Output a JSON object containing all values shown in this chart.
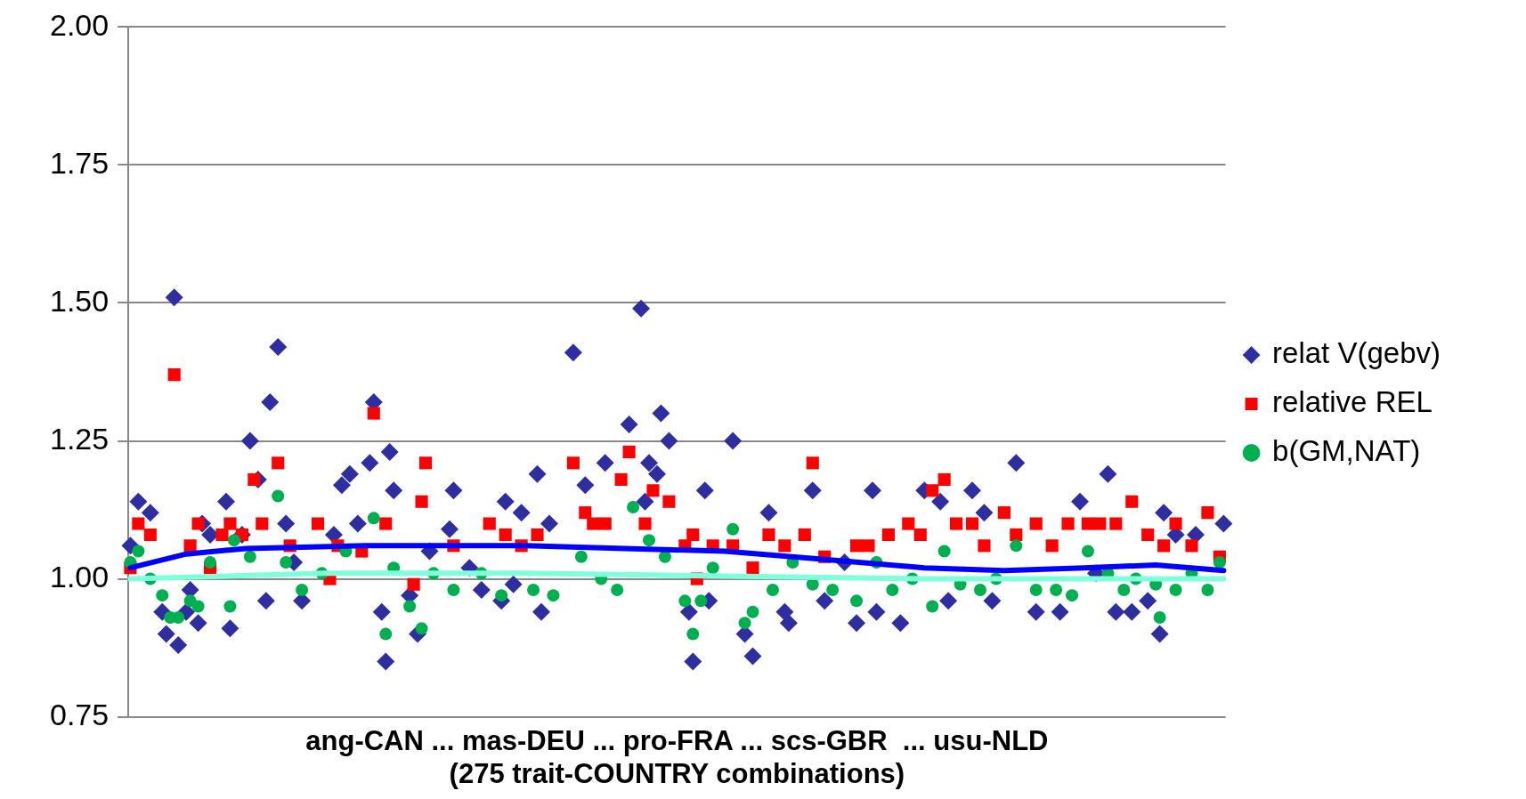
{
  "chart_data": {
    "type": "scatter",
    "xlabel": "ang-CAN ... mas-DEU ... pro-FRA ... scs-GBR  ... usu-NLD\n(275 trait-COUNTRY combinations)",
    "ylim": [
      0.75,
      2.0
    ],
    "yticks": [
      {
        "value": 0.75,
        "label": "0.75"
      },
      {
        "value": 1.0,
        "label": "1.00"
      },
      {
        "value": 1.25,
        "label": "1.25"
      },
      {
        "value": 1.5,
        "label": "1.50"
      },
      {
        "value": 1.75,
        "label": "1.75"
      },
      {
        "value": 2.0,
        "label": "2.00"
      }
    ],
    "grid": "y",
    "legend": "right",
    "tick_labels": "y",
    "categories": [
      null,
      null,
      null,
      null,
      null,
      null,
      null,
      null,
      null,
      null,
      null,
      null,
      null,
      null,
      null,
      null,
      null,
      null,
      null,
      null,
      null,
      null,
      null,
      null,
      null,
      null,
      null,
      null,
      null,
      null,
      null,
      null,
      null,
      null,
      null,
      null,
      null,
      null,
      null,
      null,
      null,
      null,
      null,
      null,
      null,
      null,
      null,
      null,
      null,
      null,
      null,
      null,
      null,
      null,
      null,
      null,
      null,
      null,
      null,
      null,
      null,
      null,
      null,
      null,
      null,
      null,
      null,
      null,
      null,
      null,
      null,
      null,
      null,
      null,
      null,
      null,
      null,
      null,
      null,
      null,
      null,
      null,
      null,
      null,
      null,
      null,
      null,
      null,
      null,
      null,
      null,
      null,
      null,
      null,
      null,
      null,
      null,
      null,
      null,
      null,
      null,
      null,
      null,
      null,
      null,
      null,
      null,
      null,
      null,
      null,
      null,
      null,
      null,
      null,
      null,
      null,
      null,
      null,
      null,
      null,
      null,
      null,
      null,
      null,
      null,
      null,
      null,
      null,
      null,
      null,
      null,
      null,
      null,
      null,
      null,
      null,
      null,
      null,
      null,
      null,
      null,
      null,
      null,
      null,
      null,
      null,
      null,
      null,
      null,
      null,
      null,
      null,
      null,
      null,
      null,
      null,
      null,
      null,
      null,
      null,
      null,
      null,
      null,
      null,
      null,
      null,
      null,
      null,
      null,
      null,
      null,
      null,
      null,
      null,
      null,
      null,
      null,
      null,
      null,
      null,
      null,
      null,
      null,
      null,
      null,
      null,
      null,
      null,
      null,
      null,
      null,
      null,
      null,
      null,
      null,
      null,
      null,
      null,
      null,
      null,
      null,
      null,
      null,
      null,
      null,
      null,
      null,
      null,
      null,
      null,
      null,
      null,
      null,
      null,
      null,
      null,
      null,
      null,
      null,
      null,
      null,
      null,
      null,
      null,
      null,
      null,
      null,
      null,
      null,
      null,
      null,
      null,
      null,
      null,
      null,
      null,
      null,
      null,
      null,
      null,
      null,
      null,
      null,
      null,
      null,
      null,
      null,
      null,
      null,
      null,
      null,
      null,
      null,
      null,
      null,
      null,
      null,
      null,
      null,
      null,
      null,
      null,
      null,
      null,
      null,
      null,
      null,
      null,
      null,
      null,
      null,
      null,
      null,
      null,
      null
    ],
    "series": [
      {
        "name": "relat V(gebv)",
        "color": "#2e2ea0",
        "marker": "diamond",
        "values": [
          1.06,
          null,
          1.14,
          null,
          null,
          1.12,
          null,
          null,
          0.94,
          0.9,
          null,
          1.51,
          0.88,
          null,
          0.94,
          0.98,
          null,
          0.92,
          1.1,
          null,
          1.08,
          null,
          null,
          null,
          1.14,
          0.91,
          null,
          null,
          1.08,
          null,
          1.25,
          null,
          1.18,
          null,
          0.96,
          1.32,
          null,
          1.42,
          null,
          1.1,
          null,
          1.03,
          null,
          0.96,
          null,
          null,
          null,
          null,
          null,
          null,
          null,
          1.08,
          null,
          1.17,
          null,
          1.19,
          null,
          1.1,
          null,
          null,
          1.21,
          1.32,
          null,
          0.94,
          0.85,
          1.23,
          1.16,
          null,
          null,
          null,
          0.97,
          null,
          0.9,
          null,
          null,
          1.05,
          null,
          null,
          null,
          null,
          1.09,
          1.16,
          null,
          null,
          null,
          1.02,
          null,
          null,
          0.98,
          null,
          null,
          null,
          null,
          0.96,
          1.14,
          null,
          0.99,
          null,
          1.12,
          null,
          null,
          null,
          1.19,
          0.94,
          null,
          1.1,
          null,
          null,
          null,
          null,
          null,
          1.41,
          null,
          null,
          1.17,
          null,
          null,
          null,
          null,
          1.21,
          null,
          null,
          null,
          null,
          null,
          1.28,
          null,
          null,
          1.49,
          1.14,
          1.21,
          null,
          1.19,
          1.3,
          null,
          1.25,
          null,
          null,
          null,
          null,
          0.94,
          0.85,
          null,
          null,
          1.16,
          0.96,
          null,
          null,
          null,
          null,
          null,
          1.25,
          null,
          null,
          0.9,
          null,
          0.86,
          null,
          null,
          null,
          1.12,
          null,
          null,
          null,
          0.94,
          0.92,
          null,
          null,
          null,
          null,
          null,
          1.16,
          null,
          null,
          0.96,
          null,
          null,
          null,
          null,
          1.03,
          null,
          null,
          0.92,
          null,
          null,
          null,
          1.16,
          0.94,
          null,
          null,
          null,
          null,
          null,
          0.92,
          null,
          null,
          null,
          null,
          null,
          1.16,
          null,
          null,
          null,
          1.14,
          null,
          0.96,
          null,
          null,
          null,
          null,
          null,
          1.16,
          null,
          null,
          1.12,
          null,
          0.96,
          null,
          null,
          null,
          null,
          null,
          1.21,
          null,
          null,
          null,
          null,
          0.94,
          null,
          null,
          null,
          null,
          null,
          0.94,
          null,
          null,
          null,
          null,
          1.14,
          null,
          null,
          null,
          1.01,
          null,
          null,
          1.19,
          null,
          0.94,
          null,
          null,
          null,
          0.94,
          null,
          null,
          null,
          0.96,
          null,
          null,
          0.9,
          1.12,
          null,
          null,
          1.08,
          null,
          null,
          null,
          null,
          1.08,
          null,
          null,
          null,
          null,
          null,
          null,
          1.1
        ]
      },
      {
        "name": "relative REL",
        "color": "#ff0000",
        "marker": "square",
        "values": [
          1.02,
          null,
          1.1,
          null,
          null,
          1.08,
          null,
          null,
          null,
          null,
          null,
          1.37,
          null,
          null,
          null,
          1.06,
          null,
          1.1,
          null,
          null,
          1.02,
          null,
          null,
          1.08,
          null,
          1.1,
          null,
          null,
          1.08,
          null,
          null,
          1.18,
          null,
          1.1,
          null,
          null,
          null,
          1.21,
          null,
          null,
          1.06,
          null,
          null,
          null,
          null,
          null,
          null,
          1.1,
          null,
          null,
          1.0,
          null,
          1.06,
          null,
          null,
          null,
          null,
          null,
          1.05,
          null,
          null,
          1.3,
          null,
          null,
          1.1,
          null,
          null,
          null,
          null,
          null,
          null,
          0.99,
          null,
          1.14,
          1.21,
          null,
          null,
          null,
          null,
          null,
          null,
          1.06,
          null,
          null,
          null,
          null,
          null,
          null,
          null,
          null,
          1.1,
          null,
          null,
          null,
          1.08,
          null,
          null,
          null,
          1.06,
          null,
          null,
          null,
          1.08,
          null,
          null,
          null,
          null,
          null,
          null,
          null,
          null,
          1.21,
          null,
          null,
          1.12,
          null,
          1.1,
          null,
          null,
          1.1,
          null,
          null,
          null,
          1.18,
          null,
          1.23,
          null,
          null,
          null,
          1.1,
          null,
          1.16,
          null,
          null,
          null,
          1.14,
          null,
          null,
          null,
          1.06,
          null,
          1.08,
          1.0,
          null,
          null,
          null,
          1.06,
          null,
          null,
          null,
          null,
          1.06,
          null,
          null,
          null,
          null,
          1.02,
          null,
          null,
          null,
          1.08,
          null,
          null,
          null,
          1.06,
          null,
          null,
          null,
          null,
          1.08,
          null,
          1.21,
          null,
          null,
          1.04,
          null,
          null,
          null,
          null,
          null,
          null,
          null,
          1.06,
          null,
          null,
          1.06,
          null,
          null,
          null,
          null,
          1.08,
          null,
          null,
          null,
          null,
          1.1,
          null,
          null,
          1.08,
          null,
          null,
          1.16,
          null,
          null,
          1.18,
          null,
          null,
          1.1,
          null,
          null,
          null,
          1.1,
          null,
          null,
          1.06,
          null,
          null,
          null,
          null,
          1.12,
          null,
          null,
          1.08,
          null,
          null,
          null,
          null,
          1.1,
          null,
          null,
          null,
          1.06,
          null,
          null,
          null,
          1.1,
          null,
          null,
          null,
          null,
          1.1,
          null,
          null,
          1.1,
          null,
          null,
          null,
          1.1,
          null,
          null,
          null,
          1.14,
          null,
          null,
          null,
          1.08,
          null,
          null,
          null,
          1.06,
          null,
          null,
          1.1,
          null,
          null,
          null,
          1.06,
          null,
          null,
          null,
          1.12,
          null,
          null,
          1.04,
          null
        ]
      },
      {
        "name": "b(GM,NAT)",
        "color": "#00b050",
        "marker": "circle",
        "values": [
          1.03,
          null,
          1.05,
          null,
          null,
          1.0,
          null,
          null,
          0.97,
          null,
          0.93,
          null,
          0.93,
          null,
          null,
          0.96,
          null,
          0.95,
          null,
          null,
          1.03,
          null,
          null,
          null,
          null,
          0.95,
          1.07,
          null,
          null,
          null,
          1.04,
          null,
          null,
          null,
          null,
          null,
          null,
          1.15,
          null,
          1.03,
          null,
          null,
          null,
          0.98,
          null,
          null,
          null,
          null,
          1.01,
          null,
          null,
          null,
          null,
          null,
          1.05,
          null,
          null,
          null,
          null,
          null,
          null,
          1.11,
          null,
          null,
          0.9,
          null,
          1.02,
          null,
          null,
          null,
          0.95,
          null,
          null,
          0.91,
          null,
          null,
          1.01,
          null,
          null,
          null,
          null,
          0.98,
          null,
          null,
          null,
          null,
          null,
          null,
          1.01,
          null,
          null,
          null,
          null,
          0.97,
          null,
          null,
          null,
          null,
          null,
          null,
          null,
          0.98,
          null,
          null,
          null,
          null,
          0.97,
          null,
          null,
          null,
          null,
          null,
          null,
          1.04,
          null,
          null,
          null,
          null,
          1.0,
          null,
          null,
          null,
          0.98,
          null,
          null,
          null,
          1.13,
          null,
          null,
          null,
          1.07,
          null,
          null,
          null,
          1.04,
          null,
          null,
          null,
          null,
          0.96,
          null,
          0.9,
          null,
          0.96,
          null,
          null,
          1.02,
          null,
          null,
          null,
          null,
          1.09,
          null,
          null,
          0.92,
          null,
          0.94,
          null,
          null,
          null,
          null,
          0.98,
          null,
          null,
          null,
          null,
          1.03,
          null,
          null,
          null,
          null,
          0.99,
          null,
          null,
          null,
          null,
          0.98,
          null,
          null,
          null,
          null,
          null,
          0.96,
          null,
          null,
          null,
          null,
          1.03,
          null,
          null,
          null,
          0.98,
          null,
          null,
          null,
          null,
          1.0,
          null,
          null,
          null,
          null,
          0.95,
          null,
          null,
          1.05,
          null,
          null,
          null,
          0.99,
          null,
          null,
          null,
          null,
          0.98,
          null,
          null,
          null,
          1.0,
          null,
          null,
          null,
          null,
          1.06,
          null,
          null,
          null,
          null,
          0.98,
          null,
          null,
          null,
          null,
          0.98,
          null,
          null,
          null,
          0.97,
          null,
          null,
          null,
          1.05,
          null,
          null,
          null,
          null,
          1.01,
          null,
          null,
          null,
          0.98,
          null,
          null,
          1.0,
          null,
          null,
          null,
          null,
          0.99,
          0.93,
          null,
          null,
          null,
          0.98,
          null,
          null,
          null,
          1.01,
          null,
          null,
          null,
          0.98,
          null,
          null,
          1.03,
          null
        ]
      },
      {
        "type": "line",
        "color": "#0000ff",
        "marker": "none",
        "values": [
          1.02,
          null,
          null,
          null,
          null,
          null,
          null,
          null,
          null,
          null,
          null,
          null,
          null,
          null,
          1.045,
          null,
          null,
          null,
          null,
          null,
          null,
          null,
          null,
          null,
          null,
          null,
          null,
          null,
          null,
          1.055,
          null,
          null,
          null,
          null,
          null,
          null,
          null,
          null,
          null,
          null,
          null,
          null,
          null,
          null,
          null,
          null,
          null,
          null,
          null,
          null,
          null,
          null,
          null,
          null,
          null,
          null,
          null,
          null,
          null,
          1.06,
          null,
          null,
          null,
          null,
          null,
          null,
          null,
          null,
          null,
          null,
          null,
          null,
          null,
          null,
          null,
          null,
          null,
          null,
          null,
          null,
          null,
          null,
          null,
          null,
          null,
          null,
          null,
          null,
          null,
          null,
          null,
          null,
          null,
          null,
          null,
          null,
          null,
          null,
          null,
          1.06,
          null,
          null,
          null,
          null,
          null,
          null,
          null,
          null,
          null,
          null,
          null,
          null,
          null,
          null,
          null,
          null,
          null,
          null,
          null,
          null,
          null,
          null,
          null,
          null,
          1.055,
          null,
          null,
          null,
          null,
          null,
          null,
          null,
          null,
          null,
          null,
          null,
          null,
          null,
          null,
          null,
          null,
          null,
          null,
          null,
          null,
          null,
          null,
          null,
          null,
          1.05,
          null,
          null,
          null,
          null,
          null,
          null,
          null,
          null,
          null,
          null,
          null,
          null,
          null,
          null,
          null,
          null,
          null,
          null,
          null,
          null,
          null,
          null,
          null,
          null,
          1.035,
          null,
          null,
          null,
          null,
          null,
          null,
          null,
          null,
          null,
          null,
          null,
          null,
          null,
          null,
          null,
          null,
          null,
          null,
          null,
          null,
          null,
          null,
          null,
          null,
          1.02,
          null,
          null,
          null,
          null,
          null,
          null,
          null,
          null,
          null,
          null,
          null,
          null,
          null,
          null,
          null,
          null,
          null,
          null,
          null,
          1.015,
          null,
          null,
          null,
          null,
          null,
          null,
          null,
          null,
          null,
          null,
          null,
          null,
          null,
          null,
          null,
          null,
          null,
          null,
          null,
          1.02,
          null,
          null,
          null,
          null,
          null,
          null,
          null,
          null,
          null,
          null,
          null,
          null,
          null,
          null,
          null,
          null,
          null,
          1.025,
          null,
          null,
          null,
          null,
          null,
          null,
          null,
          null,
          null,
          null,
          null,
          null,
          null,
          null,
          null,
          null,
          1.015
        ]
      },
      {
        "type": "line",
        "color": "#80ffdd",
        "marker": "none",
        "values": [
          1.0,
          null,
          null,
          null,
          null,
          null,
          null,
          null,
          null,
          null,
          null,
          null,
          null,
          null,
          null,
          null,
          null,
          null,
          null,
          null,
          null,
          null,
          null,
          null,
          null,
          null,
          null,
          null,
          null,
          null,
          null,
          null,
          null,
          null,
          null,
          null,
          null,
          null,
          null,
          null,
          null,
          null,
          null,
          null,
          null,
          null,
          null,
          null,
          null,
          1.01,
          null,
          null,
          null,
          null,
          null,
          null,
          null,
          null,
          null,
          null,
          null,
          null,
          null,
          null,
          null,
          null,
          null,
          null,
          null,
          null,
          null,
          null,
          null,
          null,
          null,
          null,
          null,
          null,
          null,
          null,
          null,
          null,
          null,
          null,
          null,
          null,
          null,
          null,
          null,
          null,
          null,
          null,
          null,
          null,
          null,
          null,
          null,
          null,
          null,
          1.01,
          null,
          null,
          null,
          null,
          null,
          null,
          null,
          null,
          null,
          null,
          null,
          null,
          null,
          null,
          null,
          null,
          null,
          null,
          null,
          null,
          null,
          null,
          null,
          null,
          null,
          null,
          null,
          null,
          null,
          null,
          null,
          null,
          null,
          null,
          null,
          null,
          null,
          null,
          null,
          null,
          null,
          null,
          null,
          null,
          null,
          null,
          null,
          null,
          null,
          1.005,
          null,
          null,
          null,
          null,
          null,
          null,
          null,
          null,
          null,
          null,
          null,
          null,
          null,
          null,
          null,
          null,
          null,
          null,
          null,
          null,
          null,
          null,
          null,
          null,
          null,
          null,
          null,
          null,
          null,
          null,
          null,
          null,
          null,
          null,
          null,
          null,
          null,
          null,
          null,
          null,
          null,
          null,
          null,
          null,
          null,
          null,
          null,
          null,
          null,
          1.0,
          null,
          null,
          null,
          null,
          null,
          null,
          null,
          null,
          null,
          null,
          null,
          null,
          null,
          null,
          null,
          null,
          null,
          null,
          null,
          null,
          null,
          null,
          null,
          null,
          null,
          null,
          null,
          null,
          null,
          null,
          null,
          null,
          null,
          null,
          null,
          null,
          null,
          null,
          null,
          null,
          null,
          null,
          null,
          null,
          null,
          null,
          null,
          null,
          null,
          null,
          null,
          null,
          null,
          null,
          null,
          null,
          null,
          null,
          null,
          null,
          null,
          null,
          null,
          null,
          null,
          null,
          null,
          null,
          null,
          null,
          null,
          null,
          null,
          null,
          1.0
        ]
      }
    ]
  }
}
